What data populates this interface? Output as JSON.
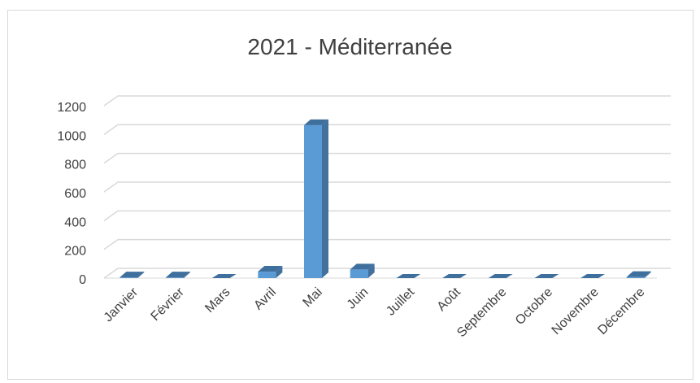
{
  "chart_data": {
    "type": "bar",
    "style": "3d-column",
    "title": "2021 - Méditerranée",
    "xlabel": "",
    "ylabel": "",
    "categories": [
      "Janvier",
      "Février",
      "Mars",
      "Avril",
      "Mai",
      "Juin",
      "Juillet",
      "Août",
      "Septembre",
      "Octobre",
      "Novembre",
      "Décembre"
    ],
    "values": [
      5,
      5,
      0,
      45,
      1065,
      60,
      0,
      0,
      0,
      0,
      0,
      8
    ],
    "ylim": [
      0,
      1200
    ],
    "yticks": [
      "0",
      "200",
      "400",
      "600",
      "800",
      "1000",
      "1200"
    ],
    "grid": true,
    "legend": "none",
    "colors": {
      "bar_front": "#5b9bd5",
      "bar_side": "#41719c",
      "bar_top": "#3f6f9c",
      "grid": "#d9d9d9",
      "text": "#404040"
    }
  }
}
